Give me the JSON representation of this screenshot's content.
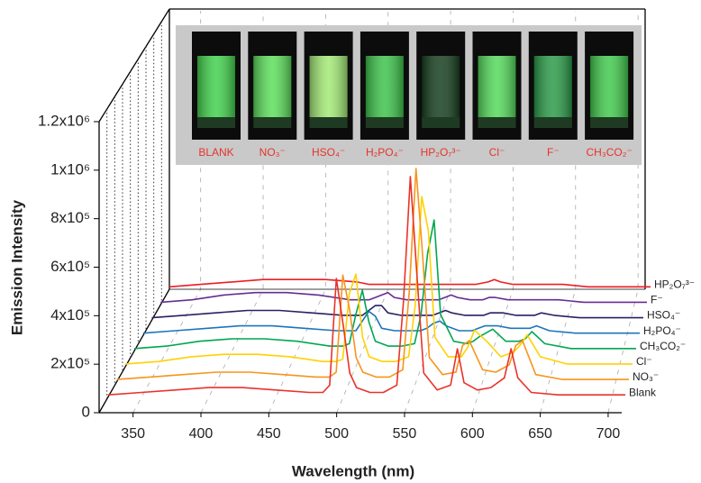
{
  "chart_data": {
    "type": "waterfall",
    "x_label": "Wavelength (nm)",
    "y_label": "Emission Intensity",
    "xlim": [
      325,
      710
    ],
    "xticks": [
      350,
      400,
      450,
      500,
      550,
      600,
      650,
      700
    ],
    "ylim": [
      0,
      1200000
    ],
    "yticks": [
      0,
      {
        "value": 200000,
        "label": "2x10⁵"
      },
      {
        "value": 400000,
        "label": "4x10⁵"
      },
      {
        "value": 600000,
        "label": "6x10⁵"
      },
      {
        "value": 800000,
        "label": "8x10⁵"
      },
      {
        "value": 1000000,
        "label": "1x10⁶"
      },
      {
        "value": 1200000,
        "label": "1.2x10⁶"
      }
    ],
    "grid": true,
    "x": [
      325,
      350,
      375,
      400,
      425,
      450,
      475,
      485,
      490,
      495,
      500,
      505,
      510,
      520,
      530,
      540,
      545,
      550,
      555,
      560,
      570,
      580,
      585,
      590,
      600,
      610,
      620,
      625,
      630,
      640,
      660,
      680,
      700,
      710
    ],
    "series": [
      {
        "name": "Blank",
        "color": "#e8332b",
        "values": [
          10000,
          20000,
          30000,
          40000,
          40000,
          30000,
          20000,
          20000,
          50000,
          490000,
          300000,
          100000,
          40000,
          20000,
          20000,
          50000,
          400000,
          910000,
          500000,
          100000,
          30000,
          50000,
          200000,
          60000,
          30000,
          40000,
          80000,
          200000,
          80000,
          20000,
          10000,
          10000,
          10000,
          10000
        ]
      },
      {
        "name": "NO₃⁻",
        "color": "#f7941d",
        "values": [
          10000,
          20000,
          30000,
          40000,
          40000,
          30000,
          20000,
          20000,
          40000,
          440000,
          300000,
          100000,
          40000,
          20000,
          20000,
          50000,
          380000,
          880000,
          520000,
          100000,
          30000,
          40000,
          150000,
          170000,
          50000,
          40000,
          70000,
          150000,
          170000,
          30000,
          10000,
          10000,
          10000,
          10000
        ]
      },
      {
        "name": "Cl⁻",
        "color": "#ffd200",
        "values": [
          10000,
          20000,
          40000,
          50000,
          50000,
          40000,
          20000,
          20000,
          30000,
          300000,
          380000,
          120000,
          40000,
          20000,
          20000,
          40000,
          250000,
          700000,
          560000,
          120000,
          40000,
          40000,
          80000,
          150000,
          100000,
          40000,
          60000,
          90000,
          130000,
          40000,
          10000,
          10000,
          10000,
          10000
        ]
      },
      {
        "name": "CH₃CO₂⁻",
        "color": "#00a651",
        "values": [
          10000,
          20000,
          40000,
          50000,
          50000,
          40000,
          20000,
          20000,
          30000,
          150000,
          250000,
          120000,
          40000,
          20000,
          20000,
          30000,
          150000,
          400000,
          540000,
          150000,
          40000,
          30000,
          40000,
          60000,
          90000,
          40000,
          40000,
          50000,
          80000,
          30000,
          10000,
          10000,
          10000,
          10000
        ]
      },
      {
        "name": "H₂PO₄⁻",
        "color": "#1c75bc",
        "values": [
          10000,
          20000,
          30000,
          40000,
          40000,
          30000,
          20000,
          20000,
          20000,
          60000,
          100000,
          80000,
          30000,
          20000,
          20000,
          20000,
          30000,
          50000,
          60000,
          40000,
          20000,
          20000,
          30000,
          40000,
          40000,
          30000,
          30000,
          30000,
          40000,
          20000,
          10000,
          10000,
          10000,
          10000
        ]
      },
      {
        "name": "HSO₄⁻",
        "color": "#262262",
        "values": [
          10000,
          20000,
          30000,
          40000,
          40000,
          30000,
          20000,
          20000,
          20000,
          40000,
          60000,
          60000,
          30000,
          20000,
          20000,
          20000,
          20000,
          30000,
          40000,
          30000,
          20000,
          20000,
          20000,
          30000,
          30000,
          20000,
          20000,
          20000,
          30000,
          20000,
          10000,
          10000,
          10000,
          10000
        ]
      },
      {
        "name": "F⁻",
        "color": "#662d91",
        "values": [
          10000,
          20000,
          40000,
          50000,
          50000,
          40000,
          20000,
          20000,
          20000,
          30000,
          40000,
          50000,
          30000,
          20000,
          20000,
          20000,
          20000,
          30000,
          40000,
          30000,
          20000,
          20000,
          30000,
          30000,
          20000,
          20000,
          20000,
          20000,
          20000,
          20000,
          10000,
          10000,
          10000,
          10000
        ]
      },
      {
        "name": "HP₂O₇³⁻",
        "color": "#ed1c24",
        "values": [
          10000,
          20000,
          30000,
          40000,
          40000,
          40000,
          30000,
          20000,
          20000,
          20000,
          20000,
          20000,
          20000,
          20000,
          20000,
          20000,
          20000,
          20000,
          20000,
          20000,
          20000,
          30000,
          40000,
          30000,
          20000,
          20000,
          20000,
          20000,
          20000,
          20000,
          10000,
          10000,
          10000,
          10000
        ]
      }
    ],
    "inset_labels": [
      "BLANK",
      "NO₃⁻",
      "HSO₄⁻",
      "H₂PO₄⁻",
      "HP₂O₇³⁻",
      "Cl⁻",
      "F⁻",
      "CH₃CO₂⁻"
    ]
  }
}
